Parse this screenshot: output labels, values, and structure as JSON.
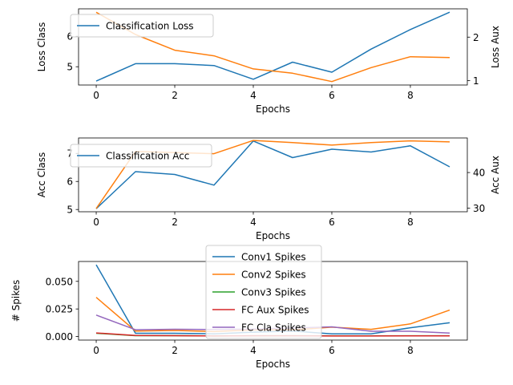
{
  "chart_data": [
    {
      "type": "line",
      "x": [
        0,
        1,
        2,
        3,
        4,
        5,
        6,
        7,
        8,
        9
      ],
      "xlabel": "Epochs",
      "xticks": [
        0,
        2,
        4,
        6,
        8
      ],
      "xlim": [
        -0.45,
        9.45
      ],
      "ylabel": "Loss Class",
      "ylim": [
        4.4,
        6.9
      ],
      "yticks": [
        5,
        6
      ],
      "y2label": "Loss Aux",
      "y2lim": [
        0.9,
        2.65
      ],
      "y2ticks": [
        1,
        2
      ],
      "legend_position": "upper-left",
      "series": [
        {
          "name": "Classification Loss",
          "axis": "left",
          "color": "#1f77b4",
          "values": [
            4.53,
            5.1,
            5.1,
            5.04,
            4.59,
            5.15,
            4.82,
            5.58,
            6.22,
            6.79
          ]
        },
        {
          "axis": "right",
          "color": "#ff7f0e",
          "values": [
            2.57,
            2.06,
            1.7,
            1.57,
            1.27,
            1.17,
            0.98,
            1.3,
            1.55,
            1.53
          ]
        }
      ]
    },
    {
      "type": "line",
      "x": [
        0,
        1,
        2,
        3,
        4,
        5,
        6,
        7,
        8,
        9
      ],
      "xlabel": "Epochs",
      "xticks": [
        0,
        2,
        4,
        6,
        8
      ],
      "xlim": [
        -0.45,
        9.45
      ],
      "ylabel": "Acc Class",
      "ylim": [
        4.92,
        7.55
      ],
      "yticks": [
        5,
        6,
        7
      ],
      "y2label": "Acc Aux",
      "y2lim": [
        29.0,
        49.7
      ],
      "y2ticks": [
        30,
        40
      ],
      "legend_position": "upper-left",
      "series": [
        {
          "name": "Classification Acc",
          "axis": "left",
          "color": "#1f77b4",
          "values": [
            5.03,
            6.35,
            6.25,
            5.87,
            7.44,
            6.85,
            7.15,
            7.05,
            7.27,
            6.52
          ]
        },
        {
          "axis": "right",
          "color": "#ff7f0e",
          "values": [
            29.9,
            45.9,
            45.6,
            45.3,
            49.0,
            48.4,
            47.7,
            48.4,
            48.9,
            48.6
          ]
        }
      ]
    },
    {
      "type": "line",
      "x": [
        0,
        1,
        2,
        3,
        4,
        5,
        6,
        7,
        8,
        9
      ],
      "xlabel": "Epochs",
      "xticks": [
        0,
        2,
        4,
        6,
        8
      ],
      "xlim": [
        -0.45,
        9.45
      ],
      "ylabel": "# Spikes",
      "ylim": [
        -0.0032,
        0.068
      ],
      "yticks": [
        0.0,
        0.025,
        0.05
      ],
      "yticklabels": [
        "0.000",
        "0.025",
        "0.050"
      ],
      "legend_position": "top-center",
      "series": [
        {
          "name": "Conv1 Spikes",
          "color": "#1f77b4",
          "values": [
            0.065,
            0.003,
            0.003,
            0.0025,
            0.004,
            0.005,
            0.0025,
            0.0025,
            0.008,
            0.0125
          ]
        },
        {
          "name": "Conv2 Spikes",
          "color": "#ff7f0e",
          "values": [
            0.0355,
            0.005,
            0.0055,
            0.0045,
            0.006,
            0.006,
            0.0085,
            0.0065,
            0.0115,
            0.024
          ]
        },
        {
          "name": "Conv3 Spikes",
          "color": "#2ca02c",
          "values": [
            0.003,
            0.0008,
            0.0008,
            0.0005,
            0.0007,
            0.0007,
            0.0006,
            0.0006,
            0.0007,
            0.0007
          ]
        },
        {
          "name": "FC Aux Spikes",
          "color": "#d62728",
          "values": [
            0.0033,
            0.001,
            0.0008,
            0.0005,
            0.0007,
            0.0007,
            0.0005,
            0.0005,
            0.0006,
            0.0006
          ]
        },
        {
          "name": "FC Cla Spikes",
          "color": "#9467bd",
          "values": [
            0.0195,
            0.0062,
            0.0066,
            0.0064,
            0.0068,
            0.0078,
            0.0088,
            0.0048,
            0.0048,
            0.0032
          ]
        }
      ]
    }
  ]
}
